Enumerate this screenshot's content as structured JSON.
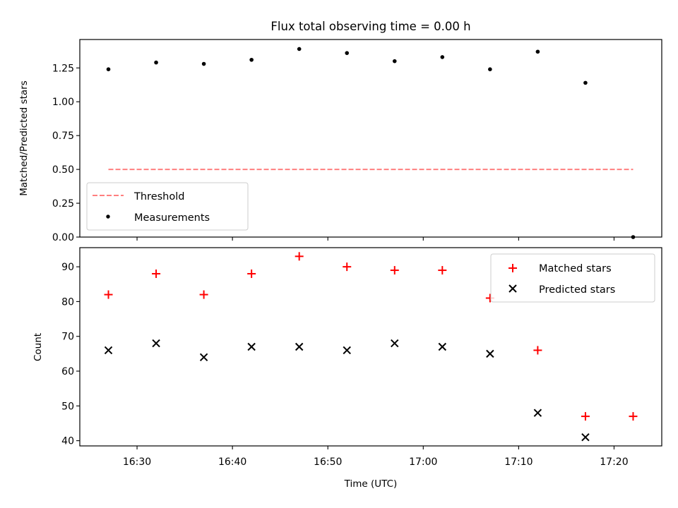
{
  "chart_data": [
    {
      "type": "scatter",
      "title": "Flux total observing time = 0.00 h",
      "ylabel": "Matched/Predicted stars",
      "ylim": [
        0,
        1.46
      ],
      "yticks": [
        0.0,
        0.25,
        0.5,
        0.75,
        1.0,
        1.25
      ],
      "ytick_labels": [
        "0.00",
        "0.25",
        "0.50",
        "0.75",
        "1.00",
        "1.25"
      ],
      "grid": false,
      "legend": "bottom-left",
      "threshold": {
        "name": "Threshold",
        "value": 0.5,
        "x_start": "16:27",
        "x_end": "17:22",
        "color": "#ff7f7f"
      },
      "series": [
        {
          "name": "Measurements",
          "marker": "dot",
          "color": "#000000",
          "x": [
            "16:27",
            "16:32",
            "16:37",
            "16:42",
            "16:47",
            "16:52",
            "16:57",
            "17:02",
            "17:07",
            "17:12",
            "17:17",
            "17:22"
          ],
          "y": [
            1.24,
            1.29,
            1.28,
            1.31,
            1.39,
            1.36,
            1.3,
            1.33,
            1.24,
            1.37,
            1.14,
            0.0
          ]
        }
      ]
    },
    {
      "type": "scatter",
      "xlabel": "Time (UTC)",
      "ylabel": "Count",
      "xlim": [
        "16:24",
        "17:25"
      ],
      "ylim": [
        38.5,
        95.5
      ],
      "xticks": [
        "16:30",
        "16:40",
        "16:50",
        "17:00",
        "17:10",
        "17:20"
      ],
      "yticks": [
        40,
        50,
        60,
        70,
        80,
        90
      ],
      "ytick_labels": [
        "40",
        "50",
        "60",
        "70",
        "80",
        "90"
      ],
      "grid": false,
      "legend": "top-right",
      "series": [
        {
          "name": "Matched stars",
          "marker": "plus",
          "color": "#ff0000",
          "x": [
            "16:27",
            "16:32",
            "16:37",
            "16:42",
            "16:47",
            "16:52",
            "16:57",
            "17:02",
            "17:07",
            "17:12",
            "17:17",
            "17:22"
          ],
          "y": [
            82,
            88,
            82,
            88,
            93,
            90,
            89,
            89,
            81,
            66,
            47,
            47
          ]
        },
        {
          "name": "Predicted stars",
          "marker": "x",
          "color": "#000000",
          "x": [
            "16:27",
            "16:32",
            "16:37",
            "16:42",
            "16:47",
            "16:52",
            "16:57",
            "17:02",
            "17:07",
            "17:12",
            "17:17"
          ],
          "y": [
            66,
            68,
            64,
            67,
            67,
            66,
            68,
            67,
            65,
            48,
            41
          ]
        }
      ]
    }
  ]
}
